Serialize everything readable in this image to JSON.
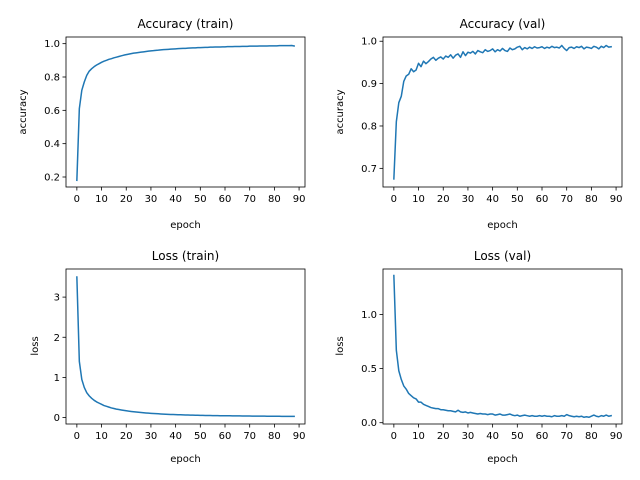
{
  "chart_data": [
    {
      "type": "line",
      "title": "Accuracy (train)",
      "xlabel": "epoch",
      "ylabel": "accuracy",
      "xlim": [
        -4.4,
        92.4
      ],
      "ylim": [
        0.14,
        1.04
      ],
      "xticks": [
        0,
        10,
        20,
        30,
        40,
        50,
        60,
        70,
        80,
        90
      ],
      "yticks": [
        0.2,
        0.4,
        0.6,
        0.8,
        1.0
      ],
      "ytick_labels": [
        "0.2",
        "0.4",
        "0.6",
        "0.8",
        "1.0"
      ],
      "grid": false,
      "color": "#1f77b4",
      "series": [
        {
          "x": [
            0,
            1,
            2,
            3,
            4,
            5,
            6,
            7,
            8,
            9,
            10,
            11,
            12,
            13,
            14,
            15,
            16,
            17,
            18,
            19,
            20,
            21,
            22,
            23,
            24,
            25,
            26,
            27,
            28,
            29,
            30,
            31,
            32,
            33,
            34,
            35,
            36,
            37,
            38,
            39,
            40,
            41,
            42,
            43,
            44,
            45,
            46,
            47,
            48,
            49,
            50,
            51,
            52,
            53,
            54,
            55,
            56,
            57,
            58,
            59,
            60,
            61,
            62,
            63,
            64,
            65,
            66,
            67,
            68,
            69,
            70,
            71,
            72,
            73,
            74,
            75,
            76,
            77,
            78,
            79,
            80,
            81,
            82,
            83,
            84,
            85,
            86,
            87,
            88
          ],
          "y": [
            0.18,
            0.61,
            0.72,
            0.77,
            0.81,
            0.835,
            0.85,
            0.862,
            0.872,
            0.88,
            0.888,
            0.895,
            0.9,
            0.906,
            0.91,
            0.915,
            0.919,
            0.923,
            0.927,
            0.931,
            0.934,
            0.937,
            0.94,
            0.943,
            0.945,
            0.947,
            0.949,
            0.951,
            0.953,
            0.955,
            0.957,
            0.958,
            0.96,
            0.961,
            0.963,
            0.964,
            0.965,
            0.966,
            0.967,
            0.968,
            0.969,
            0.97,
            0.971,
            0.972,
            0.972,
            0.973,
            0.974,
            0.975,
            0.975,
            0.976,
            0.976,
            0.977,
            0.978,
            0.978,
            0.979,
            0.979,
            0.98,
            0.98,
            0.98,
            0.981,
            0.981,
            0.982,
            0.982,
            0.982,
            0.983,
            0.983,
            0.983,
            0.984,
            0.984,
            0.984,
            0.985,
            0.985,
            0.985,
            0.985,
            0.986,
            0.986,
            0.986,
            0.986,
            0.987,
            0.987,
            0.987,
            0.987,
            0.988,
            0.988,
            0.988,
            0.988,
            0.988,
            0.989,
            0.986
          ]
        }
      ]
    },
    {
      "type": "line",
      "title": "Accuracy (val)",
      "xlabel": "epoch",
      "ylabel": "accuracy",
      "xlim": [
        -4.4,
        92.4
      ],
      "ylim": [
        0.656,
        1.01
      ],
      "xticks": [
        0,
        10,
        20,
        30,
        40,
        50,
        60,
        70,
        80,
        90
      ],
      "yticks": [
        0.7,
        0.8,
        0.9,
        1.0
      ],
      "ytick_labels": [
        "0.7",
        "0.8",
        "0.9",
        "1.0"
      ],
      "grid": false,
      "color": "#1f77b4",
      "series": [
        {
          "x": [
            0,
            1,
            2,
            3,
            4,
            5,
            6,
            7,
            8,
            9,
            10,
            11,
            12,
            13,
            14,
            15,
            16,
            17,
            18,
            19,
            20,
            21,
            22,
            23,
            24,
            25,
            26,
            27,
            28,
            29,
            30,
            31,
            32,
            33,
            34,
            35,
            36,
            37,
            38,
            39,
            40,
            41,
            42,
            43,
            44,
            45,
            46,
            47,
            48,
            49,
            50,
            51,
            52,
            53,
            54,
            55,
            56,
            57,
            58,
            59,
            60,
            61,
            62,
            63,
            64,
            65,
            66,
            67,
            68,
            69,
            70,
            71,
            72,
            73,
            74,
            75,
            76,
            77,
            78,
            79,
            80,
            81,
            82,
            83,
            84,
            85,
            86,
            87,
            88
          ],
          "y": [
            0.675,
            0.81,
            0.855,
            0.87,
            0.905,
            0.918,
            0.922,
            0.935,
            0.928,
            0.932,
            0.948,
            0.94,
            0.953,
            0.947,
            0.952,
            0.958,
            0.962,
            0.955,
            0.96,
            0.963,
            0.958,
            0.965,
            0.962,
            0.968,
            0.96,
            0.967,
            0.97,
            0.962,
            0.975,
            0.966,
            0.974,
            0.972,
            0.976,
            0.97,
            0.978,
            0.975,
            0.973,
            0.98,
            0.976,
            0.978,
            0.982,
            0.975,
            0.98,
            0.977,
            0.983,
            0.978,
            0.976,
            0.984,
            0.98,
            0.982,
            0.986,
            0.988,
            0.98,
            0.985,
            0.982,
            0.986,
            0.983,
            0.987,
            0.984,
            0.985,
            0.987,
            0.983,
            0.986,
            0.984,
            0.988,
            0.985,
            0.986,
            0.984,
            0.99,
            0.983,
            0.978,
            0.985,
            0.986,
            0.983,
            0.987,
            0.985,
            0.988,
            0.982,
            0.986,
            0.985,
            0.983,
            0.988,
            0.986,
            0.982,
            0.988,
            0.985,
            0.99,
            0.986,
            0.987
          ]
        }
      ]
    },
    {
      "type": "line",
      "title": "Loss (train)",
      "xlabel": "epoch",
      "ylabel": "loss",
      "xlim": [
        -4.4,
        92.4
      ],
      "ylim": [
        -0.16,
        3.7
      ],
      "xticks": [
        0,
        10,
        20,
        30,
        40,
        50,
        60,
        70,
        80,
        90
      ],
      "yticks": [
        0,
        1,
        2,
        3
      ],
      "ytick_labels": [
        "0",
        "1",
        "2",
        "3"
      ],
      "grid": false,
      "color": "#1f77b4",
      "series": [
        {
          "x": [
            0,
            1,
            2,
            3,
            4,
            5,
            6,
            7,
            8,
            9,
            10,
            11,
            12,
            13,
            14,
            15,
            16,
            17,
            18,
            19,
            20,
            21,
            22,
            23,
            24,
            25,
            26,
            27,
            28,
            29,
            30,
            31,
            32,
            33,
            34,
            35,
            36,
            37,
            38,
            39,
            40,
            41,
            42,
            43,
            44,
            45,
            46,
            47,
            48,
            49,
            50,
            51,
            52,
            53,
            54,
            55,
            56,
            57,
            58,
            59,
            60,
            61,
            62,
            63,
            64,
            65,
            66,
            67,
            68,
            69,
            70,
            71,
            72,
            73,
            74,
            75,
            76,
            77,
            78,
            79,
            80,
            81,
            82,
            83,
            84,
            85,
            86,
            87,
            88
          ],
          "y": [
            3.5,
            1.4,
            0.95,
            0.75,
            0.62,
            0.54,
            0.48,
            0.43,
            0.39,
            0.36,
            0.33,
            0.3,
            0.28,
            0.26,
            0.24,
            0.225,
            0.21,
            0.2,
            0.19,
            0.18,
            0.17,
            0.16,
            0.152,
            0.145,
            0.138,
            0.132,
            0.126,
            0.12,
            0.115,
            0.11,
            0.106,
            0.102,
            0.098,
            0.094,
            0.09,
            0.087,
            0.084,
            0.081,
            0.078,
            0.076,
            0.073,
            0.071,
            0.069,
            0.067,
            0.065,
            0.063,
            0.061,
            0.06,
            0.058,
            0.057,
            0.055,
            0.054,
            0.053,
            0.052,
            0.051,
            0.05,
            0.049,
            0.048,
            0.047,
            0.046,
            0.045,
            0.044,
            0.044,
            0.043,
            0.042,
            0.041,
            0.041,
            0.04,
            0.039,
            0.039,
            0.038,
            0.037,
            0.037,
            0.036,
            0.036,
            0.035,
            0.035,
            0.034,
            0.034,
            0.033,
            0.033,
            0.032,
            0.032,
            0.031,
            0.031,
            0.031,
            0.03,
            0.03,
            0.03
          ]
        }
      ]
    },
    {
      "type": "line",
      "title": "Loss (val)",
      "xlabel": "epoch",
      "ylabel": "loss",
      "xlim": [
        -4.4,
        92.4
      ],
      "ylim": [
        -0.012,
        1.42
      ],
      "xticks": [
        0,
        10,
        20,
        30,
        40,
        50,
        60,
        70,
        80,
        90
      ],
      "yticks": [
        0.0,
        0.5,
        1.0
      ],
      "ytick_labels": [
        "0.0",
        "0.5",
        "1.0"
      ],
      "grid": false,
      "color": "#1f77b4",
      "series": [
        {
          "x": [
            0,
            1,
            2,
            3,
            4,
            5,
            6,
            7,
            8,
            9,
            10,
            11,
            12,
            13,
            14,
            15,
            16,
            17,
            18,
            19,
            20,
            21,
            22,
            23,
            24,
            25,
            26,
            27,
            28,
            29,
            30,
            31,
            32,
            33,
            34,
            35,
            36,
            37,
            38,
            39,
            40,
            41,
            42,
            43,
            44,
            45,
            46,
            47,
            48,
            49,
            50,
            51,
            52,
            53,
            54,
            55,
            56,
            57,
            58,
            59,
            60,
            61,
            62,
            63,
            64,
            65,
            66,
            67,
            68,
            69,
            70,
            71,
            72,
            73,
            74,
            75,
            76,
            77,
            78,
            79,
            80,
            81,
            82,
            83,
            84,
            85,
            86,
            87,
            88
          ],
          "y": [
            1.36,
            0.67,
            0.48,
            0.4,
            0.34,
            0.31,
            0.27,
            0.25,
            0.23,
            0.22,
            0.19,
            0.19,
            0.17,
            0.16,
            0.15,
            0.14,
            0.135,
            0.13,
            0.13,
            0.12,
            0.12,
            0.115,
            0.11,
            0.11,
            0.105,
            0.1,
            0.115,
            0.1,
            0.095,
            0.1,
            0.09,
            0.095,
            0.09,
            0.085,
            0.08,
            0.085,
            0.08,
            0.08,
            0.075,
            0.08,
            0.08,
            0.07,
            0.075,
            0.08,
            0.07,
            0.07,
            0.075,
            0.08,
            0.07,
            0.065,
            0.07,
            0.06,
            0.065,
            0.07,
            0.065,
            0.06,
            0.065,
            0.06,
            0.06,
            0.065,
            0.06,
            0.065,
            0.06,
            0.06,
            0.055,
            0.065,
            0.06,
            0.06,
            0.065,
            0.06,
            0.075,
            0.065,
            0.06,
            0.055,
            0.06,
            0.055,
            0.06,
            0.05,
            0.055,
            0.05,
            0.06,
            0.07,
            0.06,
            0.055,
            0.065,
            0.06,
            0.07,
            0.06,
            0.065
          ]
        }
      ]
    }
  ]
}
